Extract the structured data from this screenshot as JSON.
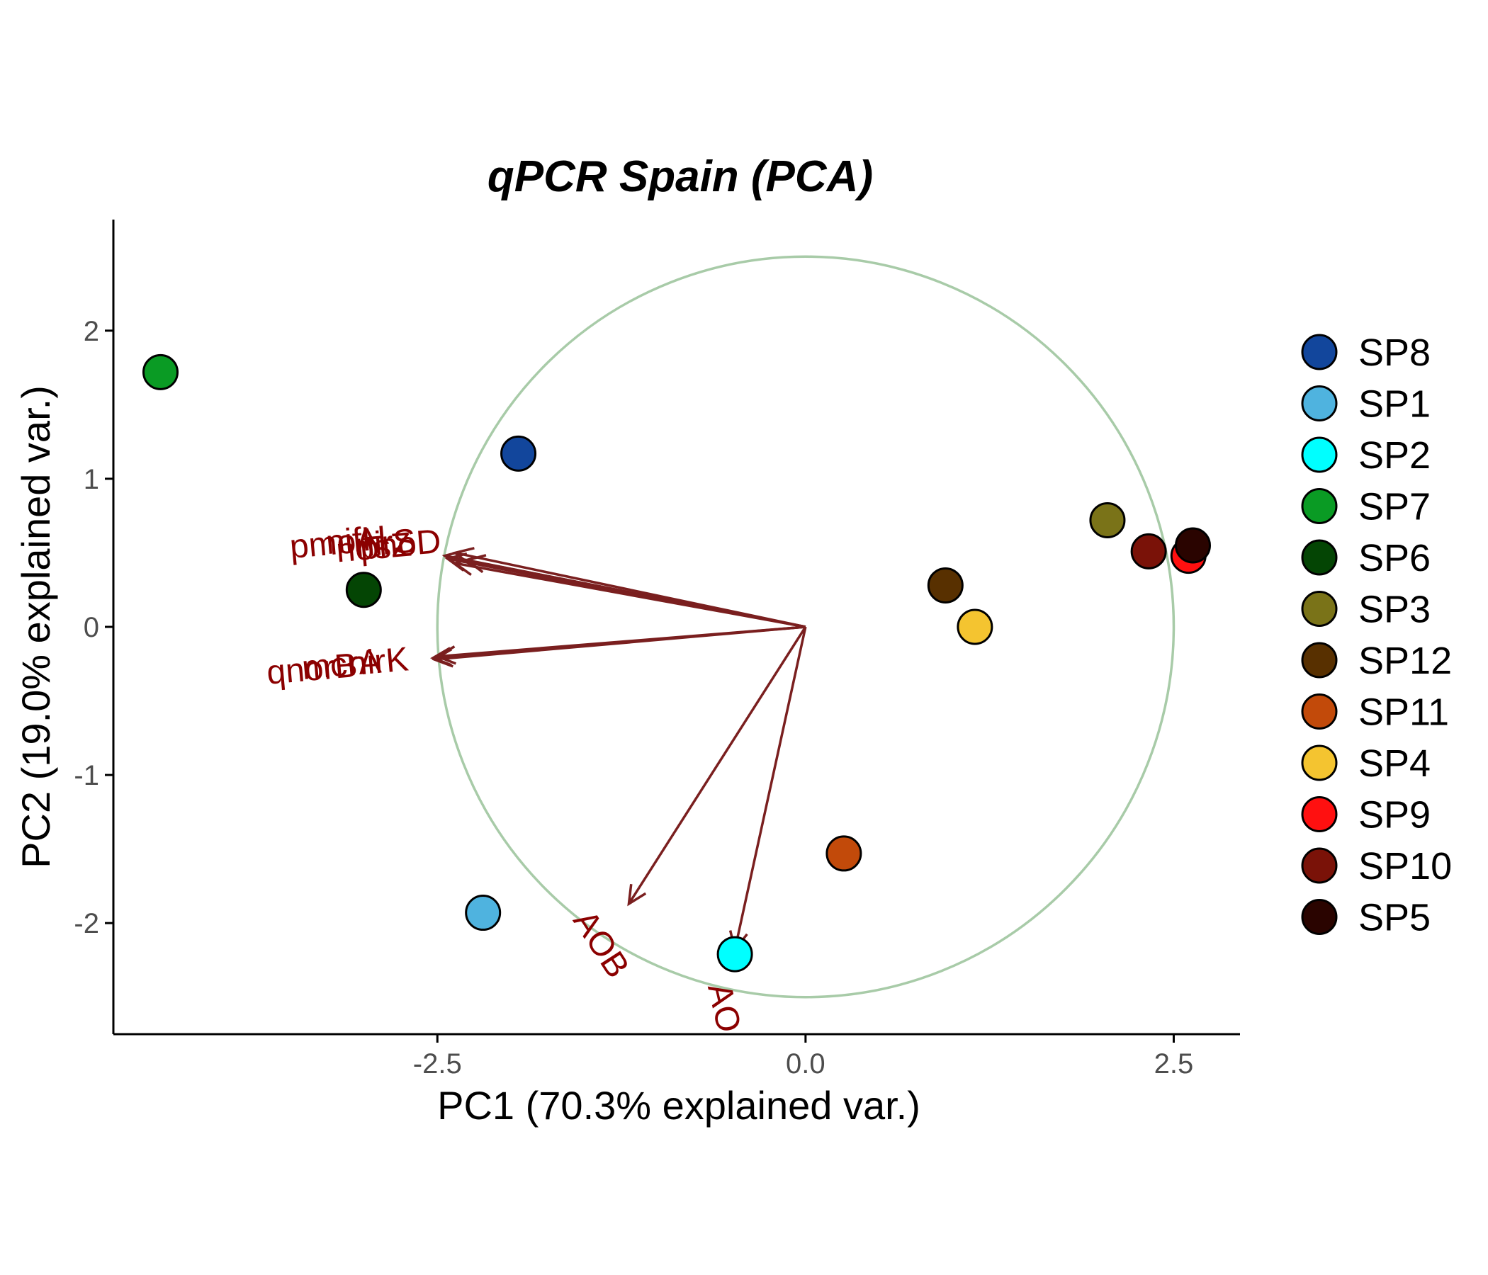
{
  "chart_data": {
    "type": "scatter",
    "title": "qPCR Spain (PCA)",
    "xlabel": "PC1 (70.3% explained var.)",
    "ylabel": "PC2 (19.0% explained var.)",
    "xlim": [
      -4.7,
      2.95
    ],
    "ylim": [
      -2.75,
      2.75
    ],
    "xticks": [
      -2.5,
      0.0,
      2.5
    ],
    "xtick_labels": [
      "-2.5",
      "0.0",
      "2.5"
    ],
    "yticks": [
      -2,
      -1,
      0,
      1,
      2
    ],
    "ytick_labels": [
      "-2",
      "-1",
      "0",
      "1",
      "2"
    ],
    "grid": false,
    "legend_position": "right",
    "circle_radius": 2.5,
    "colors": {
      "circle": "#a8cba8",
      "arrow": "#7a1f1f",
      "var_label": "#8b0000",
      "axis": "#000000",
      "point_stroke": "#000000"
    },
    "series": [
      {
        "name": "SP8",
        "color": "#12469c",
        "x": -1.95,
        "y": 1.17
      },
      {
        "name": "SP1",
        "color": "#4fb3df",
        "x": -2.19,
        "y": -1.93
      },
      {
        "name": "SP2",
        "color": "#00ffff",
        "x": -0.48,
        "y": -2.21
      },
      {
        "name": "SP7",
        "color": "#0a9b24",
        "x": -4.38,
        "y": 1.72
      },
      {
        "name": "SP6",
        "color": "#044504",
        "x": -3.0,
        "y": 0.25
      },
      {
        "name": "SP3",
        "color": "#7a7318",
        "x": 2.05,
        "y": 0.72
      },
      {
        "name": "SP12",
        "color": "#583000",
        "x": 0.95,
        "y": 0.28
      },
      {
        "name": "SP11",
        "color": "#c24a0a",
        "x": 0.26,
        "y": -1.53
      },
      {
        "name": "SP4",
        "color": "#f4c430",
        "x": 1.15,
        "y": 0.0
      },
      {
        "name": "SP9",
        "color": "#ff1010",
        "x": 2.6,
        "y": 0.48
      },
      {
        "name": "SP10",
        "color": "#7a1208",
        "x": 2.33,
        "y": 0.51
      },
      {
        "name": "SP5",
        "color": "#2a0400",
        "x": 2.63,
        "y": 0.55
      }
    ],
    "loadings": [
      {
        "name": "pmoA",
        "x": -2.3,
        "y": 0.45,
        "label_x": -3.2,
        "label_y": 0.55,
        "label_angle": 5
      },
      {
        "name": "nifH",
        "x": -2.45,
        "y": 0.48,
        "label_x": -3.05,
        "label_y": 0.57,
        "label_angle": 5
      },
      {
        "name": "nosZ",
        "x": -2.38,
        "y": 0.43,
        "label_x": -2.93,
        "label_y": 0.52,
        "label_angle": 5
      },
      {
        "name": "nirS",
        "x": -2.43,
        "y": 0.46,
        "label_x": -2.85,
        "label_y": 0.55,
        "label_angle": 5
      },
      {
        "name": "phoD",
        "x": -2.38,
        "y": 0.5,
        "label_x": -2.75,
        "label_y": 0.54,
        "label_angle": 5
      },
      {
        "name": "qnorB",
        "x": -2.5,
        "y": -0.2,
        "label_x": -3.35,
        "label_y": -0.3,
        "label_angle": 5
      },
      {
        "name": "mcrA",
        "x": -2.53,
        "y": -0.21,
        "label_x": -3.15,
        "label_y": -0.27,
        "label_angle": 5
      },
      {
        "name": "nirK",
        "x": -2.52,
        "y": -0.22,
        "label_x": -2.9,
        "label_y": -0.25,
        "label_angle": 5
      },
      {
        "name": "AOB",
        "x": -1.2,
        "y": -1.87,
        "label_x": -1.4,
        "label_y": -2.15,
        "label_angle": -57
      },
      {
        "name": "AOA",
        "x": -0.48,
        "y": -2.18,
        "label_x": -0.55,
        "label_y": -2.65,
        "label_angle": -77
      }
    ]
  }
}
